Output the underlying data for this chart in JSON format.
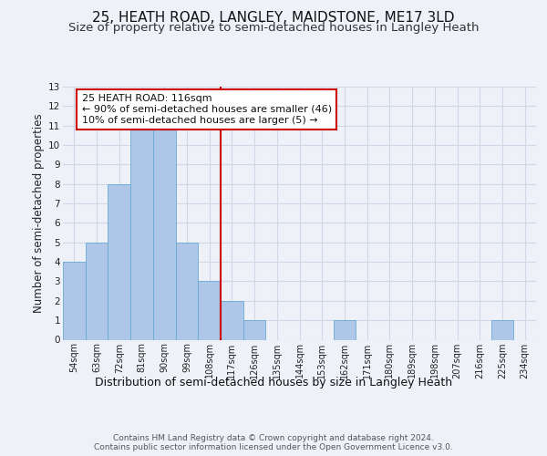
{
  "title": "25, HEATH ROAD, LANGLEY, MAIDSTONE, ME17 3LD",
  "subtitle": "Size of property relative to semi-detached houses in Langley Heath",
  "xlabel": "Distribution of semi-detached houses by size in Langley Heath",
  "ylabel": "Number of semi-detached properties",
  "categories": [
    "54sqm",
    "63sqm",
    "72sqm",
    "81sqm",
    "90sqm",
    "99sqm",
    "108sqm",
    "117sqm",
    "126sqm",
    "135sqm",
    "144sqm",
    "153sqm",
    "162sqm",
    "171sqm",
    "180sqm",
    "189sqm",
    "198sqm",
    "207sqm",
    "216sqm",
    "225sqm",
    "234sqm"
  ],
  "values": [
    4,
    5,
    8,
    11,
    11,
    5,
    3,
    2,
    1,
    0,
    0,
    0,
    1,
    0,
    0,
    0,
    0,
    0,
    0,
    1,
    0
  ],
  "bar_color": "#aec6e8",
  "bar_edge_color": "#6baad1",
  "grid_color": "#d0d8e8",
  "vline_x_index": 7,
  "vline_color": "#cc0000",
  "annotation_text": "25 HEATH ROAD: 116sqm\n← 90% of semi-detached houses are smaller (46)\n10% of semi-detached houses are larger (5) →",
  "annotation_box_color": "#ffffff",
  "annotation_box_edge_color": "#cc0000",
  "ylim": [
    0,
    13
  ],
  "yticks": [
    0,
    1,
    2,
    3,
    4,
    5,
    6,
    7,
    8,
    9,
    10,
    11,
    12,
    13
  ],
  "background_color": "#eef1f8",
  "footer_text": "Contains HM Land Registry data © Crown copyright and database right 2024.\nContains public sector information licensed under the Open Government Licence v3.0.",
  "title_fontsize": 11,
  "subtitle_fontsize": 9.5,
  "ylabel_fontsize": 8.5,
  "xlabel_fontsize": 9,
  "tick_fontsize": 7,
  "annotation_fontsize": 8,
  "footer_fontsize": 6.5
}
